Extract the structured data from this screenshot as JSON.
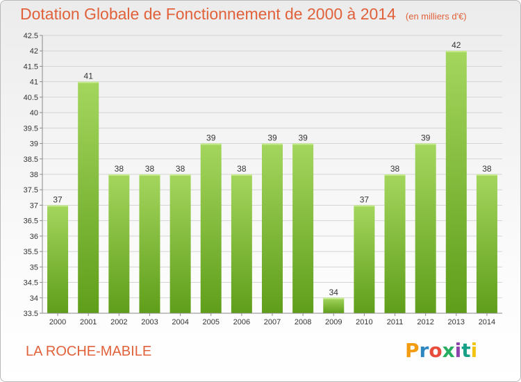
{
  "header": {
    "title": "Dotation Globale de Fonctionnement de 2000 à 2014",
    "unit": "(en milliers d'€)"
  },
  "footer": {
    "commune": "LA ROCHE-MABILE",
    "logo_text": "Proxiti",
    "logo_colors": [
      "#f39c12",
      "#2e86c1",
      "#e74c3c",
      "#27ae60",
      "#8e44ad",
      "#16a085",
      "#f1c40f"
    ]
  },
  "colors": {
    "title": "#e0613a",
    "bar_top": "#a4d65e",
    "bar_bottom": "#5f9e1a",
    "grid": "#d4d4d4",
    "axis": "#8a8a8a"
  },
  "chart_data": {
    "type": "bar",
    "categories": [
      "2000",
      "2001",
      "2002",
      "2003",
      "2004",
      "2005",
      "2006",
      "2007",
      "2008",
      "2009",
      "2010",
      "2011",
      "2012",
      "2013",
      "2014"
    ],
    "values": [
      37,
      41,
      38,
      38,
      38,
      39,
      38,
      39,
      39,
      34,
      37,
      38,
      39,
      42,
      38
    ],
    "data_labels": [
      "37",
      "41",
      "38",
      "38",
      "38",
      "39",
      "38",
      "39",
      "39",
      "34",
      "37",
      "38",
      "39",
      "42",
      "38"
    ],
    "yticks": [
      "33.5",
      "34",
      "34.5",
      "35",
      "35.5",
      "36",
      "36.5",
      "37",
      "37.5",
      "38",
      "38.5",
      "39",
      "39.5",
      "40",
      "40.5",
      "41",
      "41.5",
      "42",
      "42.5"
    ],
    "ylim": [
      33.5,
      42.5
    ],
    "grid": true,
    "legend": "none"
  }
}
